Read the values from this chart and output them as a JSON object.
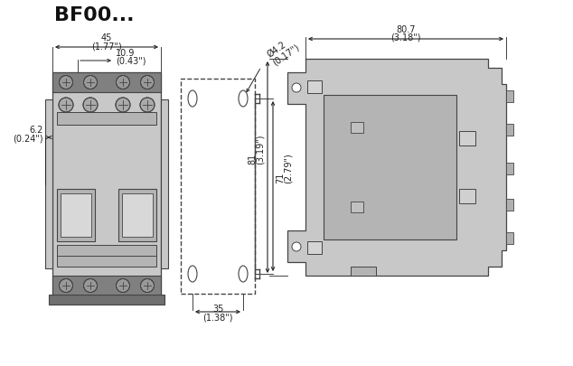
{
  "title": "BF00...",
  "title_fontsize": 16,
  "title_fontweight": "bold",
  "bg_color": "#ffffff",
  "line_color": "#444444",
  "part_color": "#c8c8c8",
  "part_color_dark": "#a0a0a0",
  "part_color_mid": "#b4b4b4",
  "dim_color": "#222222",
  "dim_fontsize": 7.0,
  "annotations": {
    "top_width": {
      "val": "45",
      "sub": "(1.77\")"
    },
    "sub_width": {
      "val": "10.9",
      "sub": "(0.43\")"
    },
    "left_dim": {
      "val": "6.2",
      "sub": "(0.24\")"
    },
    "hole_dia": {
      "val": "Ø4.2",
      "sub": "(0.17\")"
    },
    "height_71": {
      "val": "71",
      "sub": "(2.79\")"
    },
    "height_81": {
      "val": "81",
      "sub": "(3.19\")"
    },
    "bot_width": {
      "val": "35",
      "sub": "(1.38\")"
    },
    "top_width_r": {
      "val": "80.7",
      "sub": "(3.18\")"
    }
  }
}
